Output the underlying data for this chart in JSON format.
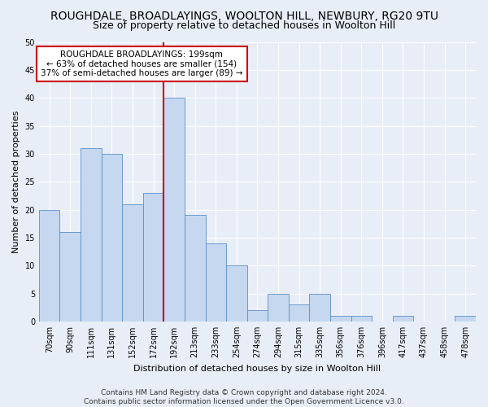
{
  "title": "ROUGHDALE, BROADLAYINGS, WOOLTON HILL, NEWBURY, RG20 9TU",
  "subtitle": "Size of property relative to detached houses in Woolton Hill",
  "xlabel": "Distribution of detached houses by size in Woolton Hill",
  "ylabel": "Number of detached properties",
  "bar_labels": [
    "70sqm",
    "90sqm",
    "111sqm",
    "131sqm",
    "152sqm",
    "172sqm",
    "192sqm",
    "213sqm",
    "233sqm",
    "254sqm",
    "274sqm",
    "294sqm",
    "315sqm",
    "335sqm",
    "356sqm",
    "376sqm",
    "396sqm",
    "417sqm",
    "437sqm",
    "458sqm",
    "478sqm"
  ],
  "bar_heights": [
    20,
    16,
    31,
    30,
    21,
    23,
    40,
    19,
    14,
    10,
    2,
    5,
    3,
    5,
    1,
    1,
    0,
    1,
    0,
    0,
    1
  ],
  "bar_color": "#c5d8f0",
  "bar_edge_color": "#5b8fc9",
  "highlight_bar_color": "#aac4e8",
  "highlight_index": 6,
  "vline_color": "#cc0000",
  "ylim": [
    0,
    50
  ],
  "yticks": [
    0,
    5,
    10,
    15,
    20,
    25,
    30,
    35,
    40,
    45,
    50
  ],
  "annotation_title": "ROUGHDALE BROADLAYINGS: 199sqm",
  "annotation_line1": "← 63% of detached houses are smaller (154)",
  "annotation_line2": "37% of semi-detached houses are larger (89) →",
  "annotation_box_color": "#ffffff",
  "annotation_box_edge": "#cc0000",
  "footer1": "Contains HM Land Registry data © Crown copyright and database right 2024.",
  "footer2": "Contains public sector information licensed under the Open Government Licence v3.0.",
  "background_color": "#e8eef8",
  "grid_color": "#ffffff",
  "title_fontsize": 10,
  "subtitle_fontsize": 9,
  "ylabel_fontsize": 8,
  "xlabel_fontsize": 8,
  "tick_fontsize": 7,
  "annotation_fontsize": 7.5,
  "footer_fontsize": 6.5
}
